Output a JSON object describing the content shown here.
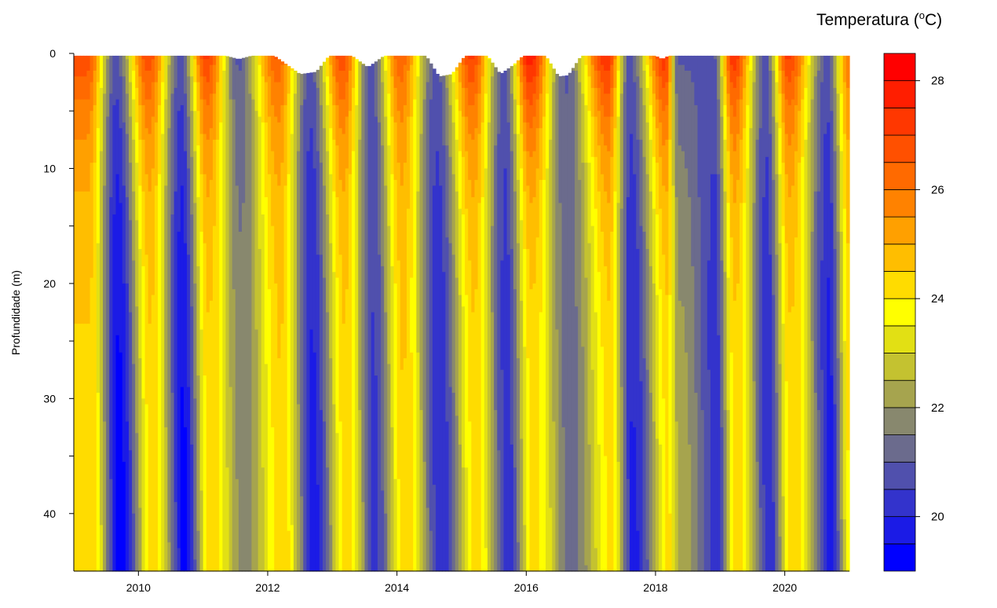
{
  "chart_data": {
    "type": "heatmap",
    "title": "",
    "ylabel": "Profundidade (m)",
    "xlabel": "",
    "colorbar_title": "Temperatura (",
    "colorbar_title_sup": "o",
    "colorbar_title_suffix": "C)",
    "x_range": [
      2009.0,
      2021.0
    ],
    "y_range": [
      0,
      45
    ],
    "y_reversed": true,
    "x_ticks": [
      2010,
      2012,
      2014,
      2016,
      2018,
      2020
    ],
    "y_ticks_labeled": [
      0,
      10,
      20,
      30,
      40
    ],
    "y_ticks_minor": [
      5,
      15,
      25,
      35
    ],
    "colorbar_ticks": [
      20,
      22,
      24,
      26,
      28
    ],
    "color_levels": [
      {
        "min": 19.0,
        "max": 19.5,
        "color": "#0000ff"
      },
      {
        "min": 19.5,
        "max": 20.0,
        "color": "#1b1be6"
      },
      {
        "min": 20.0,
        "max": 20.5,
        "color": "#3333cc"
      },
      {
        "min": 20.5,
        "max": 21.0,
        "color": "#5050ad"
      },
      {
        "min": 21.0,
        "max": 21.5,
        "color": "#6b6b8d"
      },
      {
        "min": 21.5,
        "max": 22.0,
        "color": "#88886e"
      },
      {
        "min": 22.0,
        "max": 22.5,
        "color": "#a6a44e"
      },
      {
        "min": 22.5,
        "max": 23.0,
        "color": "#c4c230"
      },
      {
        "min": 23.0,
        "max": 23.5,
        "color": "#e2e014"
      },
      {
        "min": 23.5,
        "max": 24.0,
        "color": "#ffff00"
      },
      {
        "min": 24.0,
        "max": 24.5,
        "color": "#ffdc00"
      },
      {
        "min": 24.5,
        "max": 25.0,
        "color": "#ffbe00"
      },
      {
        "min": 25.0,
        "max": 25.5,
        "color": "#ffa000"
      },
      {
        "min": 25.5,
        "max": 26.0,
        "color": "#ff8200"
      },
      {
        "min": 26.0,
        "max": 26.5,
        "color": "#ff6a00"
      },
      {
        "min": 26.5,
        "max": 27.0,
        "color": "#ff5000"
      },
      {
        "min": 27.0,
        "max": 27.5,
        "color": "#ff3700"
      },
      {
        "min": 27.5,
        "max": 28.0,
        "color": "#ff1e00"
      },
      {
        "min": 28.0,
        "max": 28.5,
        "color": "#ff0000"
      }
    ],
    "surface_profile": [
      {
        "x": 2009.0,
        "depth": 0.2
      },
      {
        "x": 2011.35,
        "depth": 0.2
      },
      {
        "x": 2011.55,
        "depth": 0.5
      },
      {
        "x": 2011.75,
        "depth": 0.2
      },
      {
        "x": 2012.1,
        "depth": 0.2
      },
      {
        "x": 2012.5,
        "depth": 1.8
      },
      {
        "x": 2012.75,
        "depth": 1.6
      },
      {
        "x": 2012.95,
        "depth": 0.2
      },
      {
        "x": 2013.3,
        "depth": 0.2
      },
      {
        "x": 2013.55,
        "depth": 1.2
      },
      {
        "x": 2013.8,
        "depth": 0.2
      },
      {
        "x": 2014.45,
        "depth": 0.2
      },
      {
        "x": 2014.65,
        "depth": 2.0
      },
      {
        "x": 2014.85,
        "depth": 1.8
      },
      {
        "x": 2015.05,
        "depth": 0.2
      },
      {
        "x": 2015.4,
        "depth": 0.2
      },
      {
        "x": 2015.6,
        "depth": 1.8
      },
      {
        "x": 2015.8,
        "depth": 1.0
      },
      {
        "x": 2015.95,
        "depth": 0.2
      },
      {
        "x": 2016.3,
        "depth": 0.2
      },
      {
        "x": 2016.5,
        "depth": 2.0
      },
      {
        "x": 2016.65,
        "depth": 1.9
      },
      {
        "x": 2016.85,
        "depth": 0.2
      },
      {
        "x": 2018.0,
        "depth": 0.2
      },
      {
        "x": 2018.1,
        "depth": 0.5
      },
      {
        "x": 2018.2,
        "depth": 0.2
      },
      {
        "x": 2021.0,
        "depth": 0.2
      }
    ],
    "summer_peaks": [
      {
        "x": 2009.2,
        "surface_temp": 27.0
      },
      {
        "x": 2010.15,
        "surface_temp": 27.0
      },
      {
        "x": 2011.05,
        "surface_temp": 27.2
      },
      {
        "x": 2012.15,
        "surface_temp": 26.6
      },
      {
        "x": 2013.15,
        "surface_temp": 27.0
      },
      {
        "x": 2014.05,
        "surface_temp": 26.5
      },
      {
        "x": 2015.15,
        "surface_temp": 27.2
      },
      {
        "x": 2016.05,
        "surface_temp": 28.0
      },
      {
        "x": 2017.25,
        "surface_temp": 27.6
      },
      {
        "x": 2018.15,
        "surface_temp": 27.5
      },
      {
        "x": 2019.2,
        "surface_temp": 27.5
      },
      {
        "x": 2020.05,
        "surface_temp": 27.2
      },
      {
        "x": 2021.0,
        "surface_temp": 26.0
      }
    ],
    "winter_minima": [
      {
        "x": 2009.65,
        "min_temp": 19.2
      },
      {
        "x": 2010.65,
        "min_temp": 19.3
      },
      {
        "x": 2011.55,
        "min_temp": 21.8
      },
      {
        "x": 2012.65,
        "min_temp": 19.8
      },
      {
        "x": 2013.6,
        "min_temp": 20.4
      },
      {
        "x": 2014.6,
        "min_temp": 20.0
      },
      {
        "x": 2015.65,
        "min_temp": 20.1
      },
      {
        "x": 2016.6,
        "min_temp": 21.3
      },
      {
        "x": 2017.6,
        "min_temp": 19.9
      },
      {
        "x": 2018.35,
        "min_temp": 22.3
      },
      {
        "x": 2018.9,
        "min_temp": 20.1
      },
      {
        "x": 2019.7,
        "min_temp": 20.0
      },
      {
        "x": 2020.65,
        "min_temp": 19.7
      }
    ],
    "legend_placement": "right",
    "grid": false
  }
}
